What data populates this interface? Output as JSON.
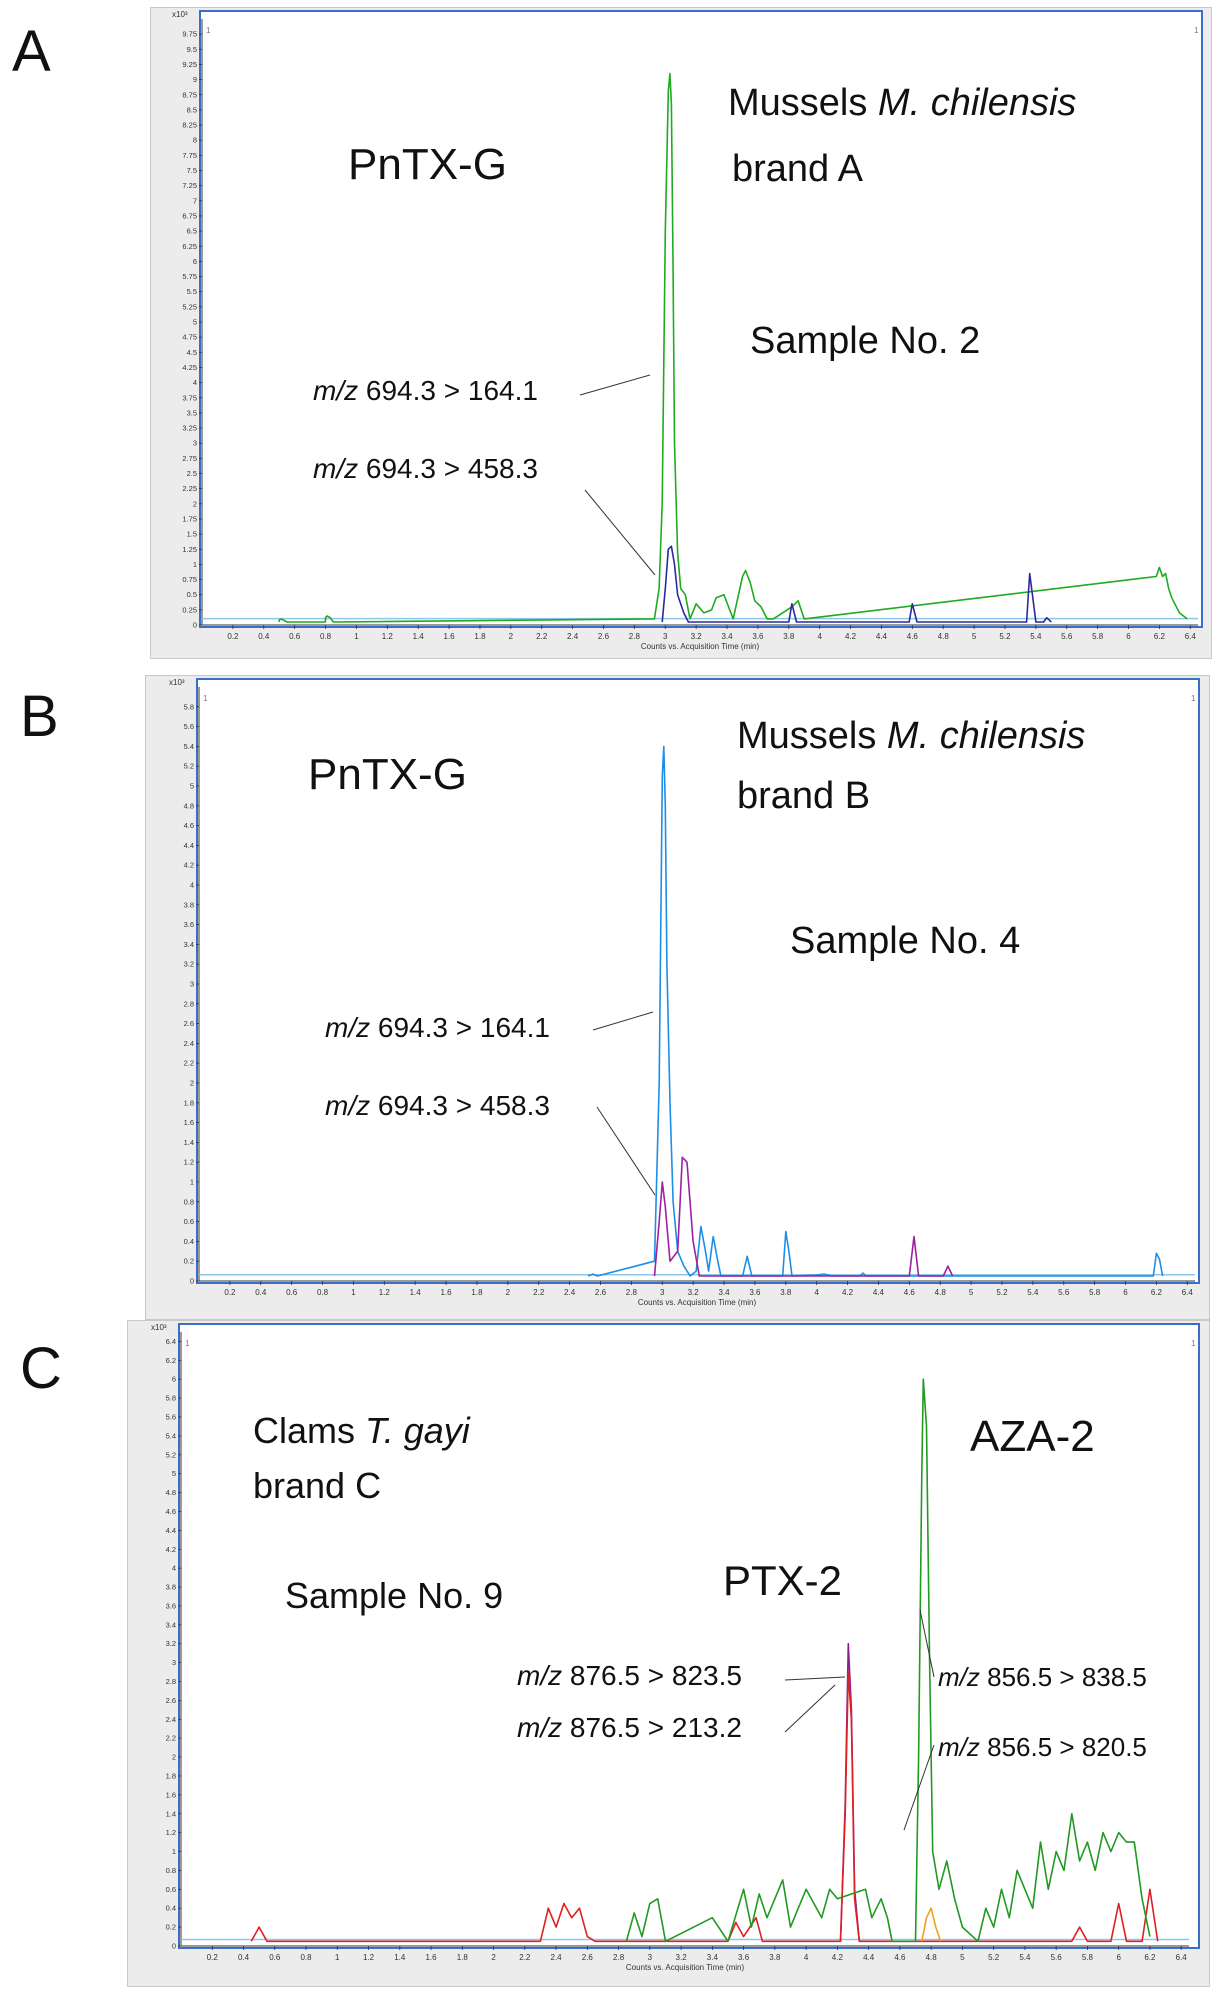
{
  "panels": [
    {
      "letter": "A"
    },
    {
      "letter": "B"
    },
    {
      "letter": "C"
    }
  ],
  "annotations": {
    "a": {
      "analyte": "PnTX-G",
      "species_prefix": "Mussels ",
      "species_italic": "M. chilensis",
      "brand": "brand A",
      "sample": "Sample No. 2",
      "transitions": [
        {
          "mz": "m/z",
          "value": "694.3 > 164.1"
        },
        {
          "mz": "m/z",
          "value": "694.3 > 458.3"
        }
      ]
    },
    "b": {
      "analyte": "PnTX-G",
      "species_prefix": "Mussels ",
      "species_italic": "M. chilensis",
      "brand": "brand B",
      "sample": "Sample No. 4",
      "transitions": [
        {
          "mz": "m/z",
          "value": "694.3 > 164.1"
        },
        {
          "mz": "m/z",
          "value": "694.3 > 458.3"
        }
      ]
    },
    "c": {
      "species_prefix": "Clams ",
      "species_italic": "T. gayi",
      "brand": "brand C",
      "sample": "Sample No. 9",
      "analyte_1": "PTX-2",
      "analyte_2": "AZA-2",
      "transitions": [
        {
          "mz": "m/z",
          "value": "876.5 > 823.5"
        },
        {
          "mz": "m/z",
          "value": "876.5 > 213.2"
        },
        {
          "mz": "m/z",
          "value": "856.5 > 838.5"
        },
        {
          "mz": "m/z",
          "value": "856.5 > 820.5"
        }
      ]
    }
  },
  "chart_data": [
    {
      "type": "line",
      "panel": "A",
      "xlabel": "Counts vs. Acquisition Time (min)",
      "ylabel": "x10^3",
      "xlim": [
        0,
        6.45
      ],
      "ylim": [
        0,
        10
      ],
      "x_ticks": [
        "0.2",
        "0.4",
        "0.6",
        "0.8",
        "1",
        "1.2",
        "1.4",
        "1.6",
        "1.8",
        "2",
        "2.2",
        "2.4",
        "2.6",
        "2.8",
        "3",
        "3.2",
        "3.4",
        "3.6",
        "3.8",
        "4",
        "4.2",
        "4.4",
        "4.6",
        "4.8",
        "5",
        "5.2",
        "5.4",
        "5.6",
        "5.8",
        "6",
        "6.2",
        "6.4"
      ],
      "y_ticks": [
        "0",
        "0.25",
        "0.5",
        "0.75",
        "1",
        "1.25",
        "1.5",
        "1.75",
        "2",
        "2.25",
        "2.5",
        "2.75",
        "3",
        "3.25",
        "3.5",
        "3.75",
        "4",
        "4.25",
        "4.5",
        "4.75",
        "5",
        "5.25",
        "5.5",
        "5.75",
        "6",
        "6.25",
        "6.5",
        "6.75",
        "7",
        "7.25",
        "7.5",
        "7.75",
        "8",
        "8.25",
        "8.5",
        "8.75",
        "9",
        "9.25",
        "9.5",
        "9.75"
      ],
      "series": [
        {
          "name": "m/z 694.3 > 164.1",
          "color": "#1faa1f",
          "x": [
            0.5,
            0.5,
            0.51,
            0.53,
            0.55,
            0.56,
            0.8,
            0.8,
            0.81,
            0.83,
            0.85,
            0.86,
            2.93,
            2.96,
            2.98,
            3.0,
            3.02,
            3.03,
            3.04,
            3.05,
            3.06,
            3.08,
            3.1,
            3.13,
            3.16,
            3.2,
            3.25,
            3.3,
            3.33,
            3.38,
            3.44,
            3.5,
            3.52,
            3.55,
            3.58,
            3.62,
            3.66,
            3.7,
            3.82,
            3.86,
            3.9,
            6.18,
            6.2,
            6.22,
            6.24,
            6.26,
            6.28,
            6.3,
            6.33,
            6.38
          ],
          "y": [
            0.05,
            0.08,
            0.1,
            0.08,
            0.05,
            0.05,
            0.05,
            0.12,
            0.15,
            0.12,
            0.05,
            0.05,
            0.1,
            0.6,
            2.0,
            6.5,
            8.8,
            9.1,
            8.6,
            6.0,
            3.0,
            1.2,
            0.6,
            0.5,
            0.1,
            0.35,
            0.2,
            0.25,
            0.45,
            0.5,
            0.1,
            0.8,
            0.9,
            0.7,
            0.4,
            0.3,
            0.1,
            0.1,
            0.3,
            0.4,
            0.1,
            0.8,
            0.95,
            0.8,
            0.85,
            0.6,
            0.45,
            0.35,
            0.2,
            0.1
          ]
        },
        {
          "name": "m/z 694.3 > 458.3",
          "color": "#2a2aa0",
          "x": [
            2.98,
            3.0,
            3.02,
            3.04,
            3.06,
            3.08,
            3.12,
            3.15,
            3.8,
            3.82,
            3.85,
            4.58,
            4.6,
            4.63,
            5.34,
            5.36,
            5.4,
            5.45,
            5.47,
            5.5
          ],
          "y": [
            0.05,
            0.6,
            1.25,
            1.3,
            1.0,
            0.5,
            0.2,
            0.05,
            0.05,
            0.35,
            0.05,
            0.05,
            0.35,
            0.05,
            0.05,
            0.85,
            0.05,
            0.05,
            0.12,
            0.05
          ]
        }
      ]
    },
    {
      "type": "line",
      "panel": "B",
      "xlabel": "Counts vs. Acquisition Time (min)",
      "ylabel": "x10^3",
      "xlim": [
        0,
        6.45
      ],
      "ylim": [
        0,
        6
      ],
      "x_ticks": [
        "0.2",
        "0.4",
        "0.6",
        "0.8",
        "1",
        "1.2",
        "1.4",
        "1.6",
        "1.8",
        "2",
        "2.2",
        "2.4",
        "2.6",
        "2.8",
        "3",
        "3.2",
        "3.4",
        "3.6",
        "3.8",
        "4",
        "4.2",
        "4.4",
        "4.6",
        "4.8",
        "5",
        "5.2",
        "5.4",
        "5.6",
        "5.8",
        "6",
        "6.2",
        "6.4"
      ],
      "y_ticks": [
        "0",
        "0.2",
        "0.4",
        "0.6",
        "0.8",
        "1",
        "1.2",
        "1.4",
        "1.6",
        "1.8",
        "2",
        "2.2",
        "2.4",
        "2.6",
        "2.8",
        "3",
        "3.2",
        "3.4",
        "3.6",
        "3.8",
        "4",
        "4.2",
        "4.4",
        "4.6",
        "4.8",
        "5",
        "5.2",
        "5.4",
        "5.6",
        "5.8"
      ],
      "series": [
        {
          "name": "m/z 694.3 > 164.1",
          "color": "#1e8fe8",
          "x": [
            2.52,
            2.55,
            2.58,
            2.95,
            2.98,
            3.0,
            3.01,
            3.02,
            3.03,
            3.05,
            3.07,
            3.1,
            3.14,
            3.18,
            3.22,
            3.25,
            3.28,
            3.3,
            3.33,
            3.36,
            3.38,
            3.52,
            3.55,
            3.58,
            3.78,
            3.8,
            3.82,
            3.84,
            4.0,
            4.05,
            4.1,
            4.28,
            4.3,
            4.32,
            6.18,
            6.2,
            6.22,
            6.24
          ],
          "y": [
            0.05,
            0.07,
            0.05,
            0.2,
            2.0,
            5.1,
            5.4,
            4.8,
            3.2,
            1.8,
            0.8,
            0.3,
            0.15,
            0.05,
            0.1,
            0.55,
            0.3,
            0.1,
            0.45,
            0.2,
            0.05,
            0.05,
            0.25,
            0.05,
            0.05,
            0.5,
            0.3,
            0.05,
            0.06,
            0.07,
            0.05,
            0.05,
            0.08,
            0.05,
            0.05,
            0.28,
            0.22,
            0.05
          ]
        },
        {
          "name": "m/z 694.3 > 458.3",
          "color": "#a020a0",
          "x": [
            2.95,
            2.98,
            3.0,
            3.02,
            3.05,
            3.1,
            3.13,
            3.16,
            3.2,
            3.24,
            4.6,
            4.63,
            4.66,
            4.82,
            4.85,
            4.88
          ],
          "y": [
            0.05,
            0.6,
            1.0,
            0.75,
            0.2,
            0.3,
            1.25,
            1.2,
            0.4,
            0.05,
            0.05,
            0.45,
            0.05,
            0.05,
            0.15,
            0.05
          ]
        }
      ]
    },
    {
      "type": "line",
      "panel": "C",
      "xlabel": "Counts vs. Acquisition Time (min)",
      "ylabel": "x10^3",
      "xlim": [
        0,
        6.45
      ],
      "ylim": [
        0,
        6.5
      ],
      "x_ticks": [
        "0.2",
        "0.4",
        "0.6",
        "0.8",
        "1",
        "1.2",
        "1.4",
        "1.6",
        "1.8",
        "2",
        "2.2",
        "2.4",
        "2.6",
        "2.8",
        "3",
        "3.2",
        "3.4",
        "3.6",
        "3.8",
        "4",
        "4.2",
        "4.4",
        "4.6",
        "4.8",
        "5",
        "5.2",
        "5.4",
        "5.6",
        "5.8",
        "6",
        "6.2",
        "6.4"
      ],
      "y_ticks": [
        "0",
        "0.2",
        "0.4",
        "0.6",
        "0.8",
        "1",
        "1.2",
        "1.4",
        "1.6",
        "1.8",
        "2",
        "2.2",
        "2.4",
        "2.6",
        "2.8",
        "3",
        "3.2",
        "3.4",
        "3.6",
        "3.8",
        "4",
        "4.2",
        "4.4",
        "4.6",
        "4.8",
        "5",
        "5.2",
        "5.4",
        "5.6",
        "5.8",
        "6",
        "6.2",
        "6.4"
      ],
      "series": [
        {
          "name": "m/z 876.5 > 823.5",
          "color": "#8a2090",
          "x": [
            4.22,
            4.25,
            4.27,
            4.29,
            4.31,
            4.34
          ],
          "y": [
            0.05,
            1.5,
            3.2,
            2.5,
            0.6,
            0.05
          ]
        },
        {
          "name": "m/z 876.5 > 213.2",
          "color": "#e02020",
          "x": [
            0.45,
            0.5,
            0.55,
            2.3,
            2.35,
            2.4,
            2.45,
            2.5,
            2.55,
            2.6,
            2.65,
            3.5,
            3.55,
            3.6,
            3.68,
            3.72,
            4.22,
            4.25,
            4.27,
            4.29,
            4.31,
            4.34,
            5.7,
            5.75,
            5.8,
            5.95,
            6.0,
            6.05,
            6.15,
            6.2,
            6.25
          ],
          "y": [
            0.05,
            0.2,
            0.05,
            0.05,
            0.4,
            0.2,
            0.45,
            0.3,
            0.4,
            0.1,
            0.05,
            0.05,
            0.25,
            0.1,
            0.3,
            0.05,
            0.05,
            1.4,
            2.9,
            2.4,
            0.5,
            0.05,
            0.05,
            0.2,
            0.05,
            0.05,
            0.45,
            0.05,
            0.05,
            0.6,
            0.05
          ]
        },
        {
          "name": "m/z 856.5 > 838.5",
          "color": "#229922",
          "x": [
            2.85,
            2.9,
            2.95,
            3.0,
            3.05,
            3.1,
            3.4,
            3.5,
            3.6,
            3.65,
            3.7,
            3.75,
            3.85,
            3.9,
            3.95,
            4.0,
            4.1,
            4.15,
            4.2,
            4.38,
            4.42,
            4.48,
            4.52,
            4.55,
            4.7,
            4.72,
            4.74,
            4.75,
            4.77,
            4.79,
            4.81,
            4.85,
            4.9,
            4.95,
            5.0,
            5.1,
            5.15,
            5.2,
            5.25,
            5.3,
            5.35,
            5.45,
            5.5,
            5.55,
            5.6,
            5.65,
            5.7,
            5.75,
            5.8,
            5.85,
            5.9,
            5.95,
            6.0,
            6.05,
            6.1,
            6.15,
            6.2
          ],
          "y": [
            0.05,
            0.35,
            0.1,
            0.45,
            0.5,
            0.05,
            0.3,
            0.05,
            0.6,
            0.2,
            0.55,
            0.3,
            0.7,
            0.2,
            0.4,
            0.6,
            0.3,
            0.6,
            0.5,
            0.6,
            0.3,
            0.5,
            0.3,
            0.05,
            0.05,
            2.0,
            5.0,
            6.0,
            5.5,
            3.0,
            1.0,
            0.6,
            0.9,
            0.5,
            0.2,
            0.05,
            0.4,
            0.2,
            0.6,
            0.3,
            0.8,
            0.4,
            1.1,
            0.6,
            1.0,
            0.8,
            1.4,
            0.9,
            1.1,
            0.8,
            1.2,
            1.0,
            1.2,
            1.1,
            1.1,
            0.5,
            0.1
          ]
        },
        {
          "name": "m/z 856.5 > 820.5",
          "color": "#f0a020",
          "x": [
            4.74,
            4.77,
            4.8,
            4.83,
            4.86
          ],
          "y": [
            0.05,
            0.3,
            0.4,
            0.2,
            0.05
          ]
        }
      ]
    }
  ]
}
